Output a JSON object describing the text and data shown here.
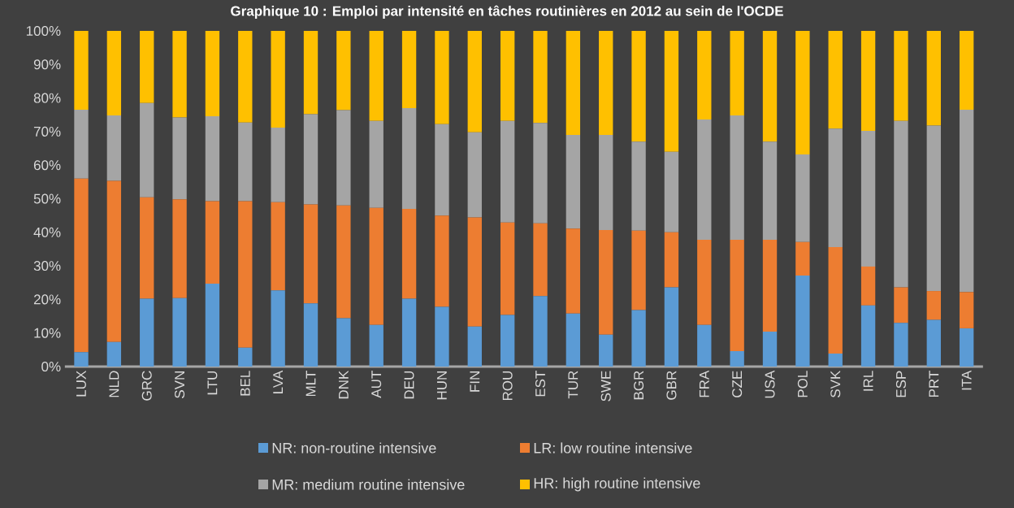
{
  "chart_data": {
    "type": "bar",
    "stacked": true,
    "title": "Graphique 10 : Emploi par intensité en tâches routinières en 2012 au sein de l'OCDE",
    "categories": [
      "LUX",
      "NLD",
      "GRC",
      "SVN",
      "LTU",
      "BEL",
      "LVA",
      "MLT",
      "DNK",
      "AUT",
      "DEU",
      "HUN",
      "FIN",
      "ROU",
      "EST",
      "TUR",
      "SWE",
      "BGR",
      "GBR",
      "FRA",
      "CZE",
      "USA",
      "POL",
      "SVK",
      "IRL",
      "ESP",
      "PRT",
      "ITA"
    ],
    "series": [
      {
        "name": "NR: non-routine intensive",
        "color": "#5b9bd5",
        "values": [
          4.3,
          7.3,
          20.2,
          20.4,
          24.7,
          5.6,
          22.7,
          18.8,
          14.4,
          12.4,
          20.2,
          17.8,
          11.9,
          15.4,
          21.0,
          15.8,
          9.5,
          16.8,
          23.6,
          12.4,
          4.6,
          10.4,
          27.1,
          3.9,
          18.2,
          13.0,
          13.9,
          11.4
        ]
      },
      {
        "name": "LR: low routine intensive",
        "color": "#ed7d31",
        "values": [
          51.7,
          48.0,
          30.2,
          29.4,
          24.6,
          43.7,
          26.3,
          29.5,
          33.6,
          34.9,
          26.8,
          27.2,
          32.5,
          27.5,
          21.7,
          25.3,
          31.2,
          23.7,
          16.4,
          25.4,
          33.2,
          27.4,
          10.0,
          31.7,
          11.6,
          10.6,
          8.6,
          10.8
        ]
      },
      {
        "name": "MR: medium routine intensive",
        "color": "#a5a5a5",
        "values": [
          20.5,
          19.5,
          28.1,
          24.4,
          25.3,
          23.4,
          22.2,
          26.9,
          28.4,
          25.9,
          30.0,
          27.2,
          25.4,
          30.3,
          29.9,
          27.9,
          28.3,
          26.5,
          24.0,
          35.8,
          37.0,
          29.2,
          26.1,
          35.3,
          40.4,
          49.6,
          49.3,
          54.3
        ]
      },
      {
        "name": "HR: high routine intensive",
        "color": "#ffc000",
        "values": [
          23.5,
          25.2,
          21.5,
          25.8,
          25.4,
          27.3,
          28.8,
          24.8,
          23.6,
          26.8,
          23.0,
          27.8,
          30.2,
          26.8,
          27.4,
          31.0,
          31.0,
          33.0,
          36.0,
          26.4,
          25.2,
          33.0,
          36.8,
          29.1,
          29.8,
          26.8,
          28.2,
          23.5
        ]
      }
    ],
    "ylim": [
      0,
      100
    ],
    "yticks": [
      {
        "value": 0,
        "label": "0%"
      },
      {
        "value": 10,
        "label": "10%"
      },
      {
        "value": 20,
        "label": "20%"
      },
      {
        "value": 30,
        "label": "30%"
      },
      {
        "value": 40,
        "label": "40%"
      },
      {
        "value": 50,
        "label": "50%"
      },
      {
        "value": 60,
        "label": "60%"
      },
      {
        "value": 70,
        "label": "70%"
      },
      {
        "value": 80,
        "label": "80%"
      },
      {
        "value": 90,
        "label": "90%"
      },
      {
        "value": 100,
        "label": "100%"
      }
    ],
    "legend": "bottom"
  }
}
